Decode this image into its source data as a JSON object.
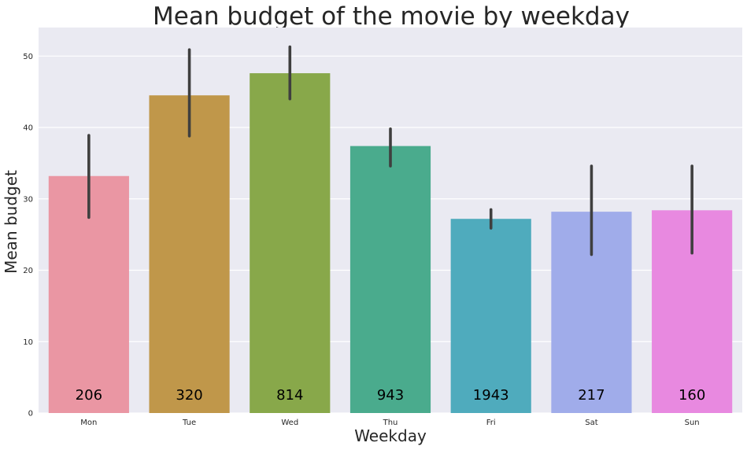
{
  "chart_data": {
    "type": "bar",
    "title": "Mean budget of the movie by weekday",
    "xlabel": "Weekday",
    "ylabel": "Mean budget",
    "categories": [
      "Mon",
      "Tue",
      "Wed",
      "Thu",
      "Fri",
      "Sat",
      "Sun"
    ],
    "values": [
      33.2,
      44.5,
      47.6,
      37.4,
      27.2,
      28.2,
      28.4
    ],
    "error_low": [
      27.4,
      38.8,
      44.0,
      34.6,
      25.9,
      22.2,
      22.4
    ],
    "error_high": [
      38.9,
      50.9,
      51.3,
      39.8,
      28.5,
      34.6,
      34.6
    ],
    "counts": [
      "206",
      "320",
      "814",
      "943",
      "1943",
      "217",
      "160"
    ],
    "colors": [
      "#ea96a3",
      "#c0974a",
      "#88a84a",
      "#4aab8d",
      "#4fabbd",
      "#a0acea",
      "#e889e0"
    ],
    "ylim": [
      0,
      54
    ],
    "yticks": [
      "0",
      "10",
      "20",
      "30",
      "40",
      "50"
    ],
    "grid": true,
    "background": "#eaeaf2"
  }
}
